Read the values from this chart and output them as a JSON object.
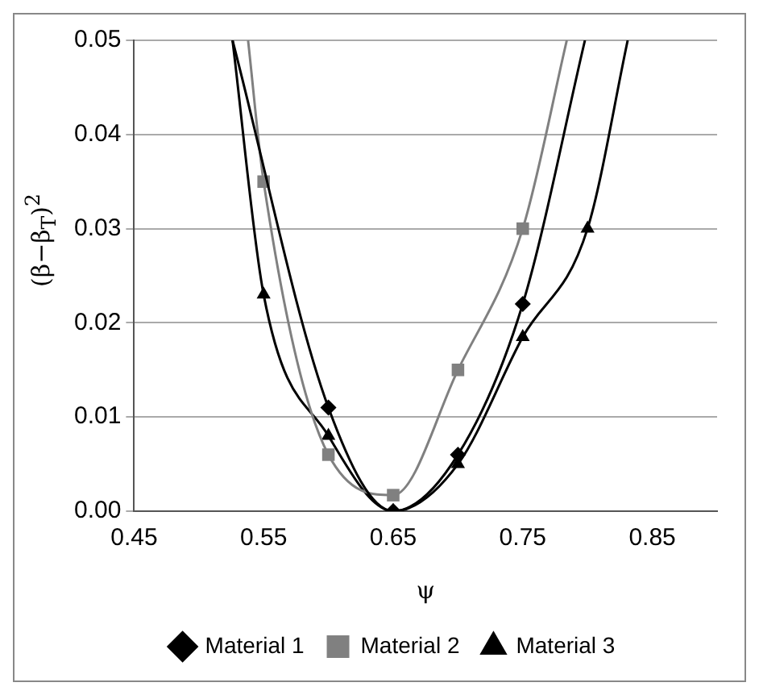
{
  "chart_data": {
    "type": "line",
    "xlabel": "ψ",
    "ylabel": "(β−β$_{T}$)$^{2}$",
    "xlim": [
      0.45,
      0.9
    ],
    "xticks": [
      0.45,
      0.55,
      0.65,
      0.75,
      0.85
    ],
    "ylim": [
      0,
      0.05
    ],
    "yticks": [
      {
        "value": 0,
        "label": "0.00"
      },
      {
        "value": 0.01,
        "label": "0.01"
      },
      {
        "value": 0.02,
        "label": "0.02"
      },
      {
        "value": 0.03,
        "label": "0.03"
      },
      {
        "value": 0.04,
        "label": "0.04"
      },
      {
        "value": 0.05,
        "label": "0.05"
      }
    ],
    "grid": "y",
    "legend": "bottom",
    "line_style": "solid",
    "series": [
      {
        "name": "Material 1",
        "color": "#000000",
        "marker": "diamond",
        "x": [
          0.526,
          0.6,
          0.65,
          0.7,
          0.75,
          0.798
        ],
        "values": [
          0.05,
          0.011,
          0,
          0.006,
          0.022,
          0.05
        ]
      },
      {
        "name": "Material 2",
        "color": "#808080",
        "marker": "square",
        "x": [
          0.538,
          0.55,
          0.6,
          0.65,
          0.7,
          0.75,
          0.784
        ],
        "values": [
          0.05,
          0.035,
          0.006,
          0.0017,
          0.015,
          0.03,
          0.05
        ]
      },
      {
        "name": "Material 3",
        "color": "#000000",
        "marker": "triangle",
        "x": [
          0.526,
          0.55,
          0.6,
          0.65,
          0.7,
          0.75,
          0.8,
          0.831
        ],
        "values": [
          0.05,
          0.023,
          0.008,
          0,
          0.005,
          0.0185,
          0.03,
          0.05
        ]
      }
    ]
  }
}
